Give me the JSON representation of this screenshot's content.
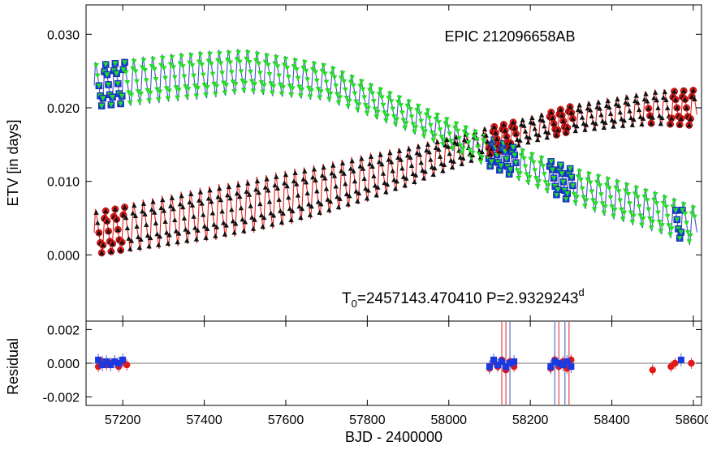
{
  "chart_data": {
    "type": "scatter",
    "title": "EPIC 212096658AB",
    "annotation": {
      "t0_prefix": "T",
      "t0_sub": "0",
      "t0_rest": "=2457143.470410 P=2.9329243",
      "t0_sup": "d"
    },
    "xlabel": "BJD - 2400000",
    "xlim": [
      57110,
      58620
    ],
    "xticks": [
      "57200",
      "57400",
      "57600",
      "57800",
      "58000",
      "58200",
      "58400",
      "58600"
    ],
    "top_panel": {
      "ylabel": "ETV [in days]",
      "ylim": [
        -0.009,
        0.034
      ],
      "yticks": [
        "0.000",
        "0.010",
        "0.020",
        "0.030"
      ],
      "model_period": 23.25,
      "series": [
        {
          "name": "",
          "kind": "primary model (red line)",
          "color": "#e02020",
          "marker": "black-triangle",
          "mean_points": [
            [
              57140,
              0.003
            ],
            [
              57300,
              0.0045
            ],
            [
              57500,
              0.0065
            ],
            [
              57700,
              0.009
            ],
            [
              57900,
              0.012
            ],
            [
              58100,
              0.0155
            ],
            [
              58300,
              0.0185
            ],
            [
              58500,
              0.02
            ],
            [
              58600,
              0.02
            ]
          ],
          "amplitude_points": [
            [
              57140,
              0.007
            ],
            [
              57400,
              0.008
            ],
            [
              57600,
              0.008
            ],
            [
              57800,
              0.007
            ],
            [
              58000,
              0.005
            ],
            [
              58200,
              0.004
            ],
            [
              58400,
              0.0045
            ],
            [
              58600,
              0.006
            ]
          ]
        },
        {
          "name": "",
          "kind": "secondary model (blue line)",
          "color": "#4050c0",
          "marker": "green-triangle-down",
          "mean_points": [
            [
              57140,
              0.023
            ],
            [
              57300,
              0.024
            ],
            [
              57500,
              0.025
            ],
            [
              57700,
              0.0235
            ],
            [
              57900,
              0.019
            ],
            [
              58100,
              0.014
            ],
            [
              58300,
              0.0095
            ],
            [
              58500,
              0.006
            ],
            [
              58600,
              0.004
            ]
          ],
          "amplitude_points": [
            [
              57140,
              0.007
            ],
            [
              57400,
              0.007
            ],
            [
              57600,
              0.006
            ],
            [
              57800,
              0.005
            ],
            [
              58000,
              0.0045
            ],
            [
              58200,
              0.005
            ],
            [
              58400,
              0.006
            ],
            [
              58600,
              0.006
            ]
          ]
        }
      ],
      "observed_primary_ranges": [
        [
          57140,
          57205
        ],
        [
          58095,
          58165
        ],
        [
          58245,
          58305
        ],
        [
          58490,
          58500
        ],
        [
          58540,
          58600
        ]
      ],
      "observed_secondary_ranges": [
        [
          57140,
          57205
        ],
        [
          58095,
          58165
        ],
        [
          58245,
          58305
        ],
        [
          58555,
          58575
        ]
      ]
    },
    "bottom_panel": {
      "ylabel": "Residual",
      "ylim": [
        -0.0025,
        0.0025
      ],
      "yticks": [
        "0.002",
        "0.000",
        "-0.002"
      ],
      "primary_residuals": [
        [
          57140,
          -0.0002
        ],
        [
          57150,
          0.0001
        ],
        [
          57160,
          -0.0001
        ],
        [
          57170,
          0.0
        ],
        [
          57180,
          0.0001
        ],
        [
          57190,
          -0.0002
        ],
        [
          57200,
          0.0001
        ],
        [
          57210,
          -0.0001
        ],
        [
          58100,
          -0.0003
        ],
        [
          58110,
          0.0001
        ],
        [
          58120,
          -0.0002
        ],
        [
          58130,
          0.0002
        ],
        [
          58140,
          -0.0004
        ],
        [
          58150,
          0.0001
        ],
        [
          58160,
          -0.0002
        ],
        [
          58250,
          -0.0003
        ],
        [
          58260,
          0.0002
        ],
        [
          58270,
          -0.0002
        ],
        [
          58280,
          0.0001
        ],
        [
          58290,
          -0.0003
        ],
        [
          58300,
          0.0002
        ],
        [
          58500,
          -0.0004
        ],
        [
          58545,
          -0.0002
        ],
        [
          58555,
          0.0
        ],
        [
          58595,
          0.0
        ]
      ],
      "secondary_residuals": [
        [
          57140,
          0.0002
        ],
        [
          57150,
          -0.0001
        ],
        [
          57160,
          0.0001
        ],
        [
          57170,
          -0.0001
        ],
        [
          57180,
          0.0001
        ],
        [
          57190,
          0.0
        ],
        [
          57200,
          0.0002
        ],
        [
          58100,
          -0.0002
        ],
        [
          58110,
          0.0002
        ],
        [
          58120,
          -0.0001
        ],
        [
          58130,
          0.0001
        ],
        [
          58140,
          -0.0002
        ],
        [
          58150,
          0.0
        ],
        [
          58160,
          0.0001
        ],
        [
          58250,
          -0.0002
        ],
        [
          58260,
          0.0001
        ],
        [
          58270,
          0.0
        ],
        [
          58280,
          -0.0001
        ],
        [
          58290,
          0.0001
        ],
        [
          58300,
          -0.0002
        ],
        [
          58570,
          0.0002
        ]
      ],
      "large_error_bars": [
        [
          58130,
          "#e02020"
        ],
        [
          58140,
          "#e02020"
        ],
        [
          58150,
          "#4050c0"
        ],
        [
          58260,
          "#4050c0"
        ],
        [
          58270,
          "#e02020"
        ],
        [
          58285,
          "#4050c0"
        ],
        [
          58295,
          "#e02020"
        ]
      ]
    }
  }
}
